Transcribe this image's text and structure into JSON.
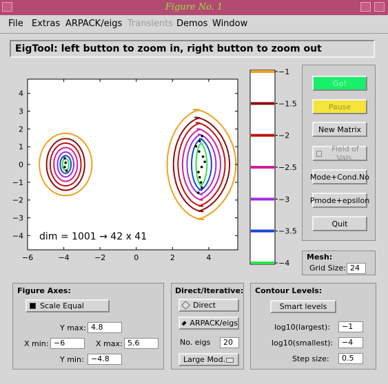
{
  "window": {
    "title": "Figure No. 1"
  },
  "menu": [
    "File",
    "Extras",
    "ARPACK/eigs",
    "Transients",
    "Demos",
    "Window"
  ],
  "status_message": "EigTool: left button to zoom in, right button to zoom out",
  "plot": {
    "annotation": "dim = 1001 → 42 x 41",
    "x_ticks": [
      "−6",
      "−4",
      "−2",
      "0",
      "2",
      "4"
    ],
    "y_ticks": [
      "4",
      "3",
      "2",
      "1",
      "0",
      "−1",
      "−2",
      "−3",
      "−4"
    ],
    "xlim": [
      -6,
      5.6
    ],
    "ylim": [
      -4.8,
      4.8
    ]
  },
  "colorbar": {
    "levels": [
      "−1",
      "−1.5",
      "−2",
      "−2.5",
      "−3",
      "−3.5",
      "−4"
    ],
    "colors": [
      "#f0a020",
      "#8b1010",
      "#c01010",
      "#d0209a",
      "#9a2ee0",
      "#1646d8",
      "#2fe24a"
    ]
  },
  "buttons": {
    "go": "Go!",
    "pause": "Pause",
    "new_matrix": "New Matrix",
    "field_of_vals": "Field of Vals.",
    "mode_cond": "Mode+Cond.No",
    "pmode": "Pmode+epsilon",
    "quit": "Quit"
  },
  "mesh": {
    "title": "Mesh:",
    "grid_label": "Grid Size:",
    "grid_value": "24"
  },
  "figure_axes": {
    "title": "Figure Axes:",
    "scale_equal": "Scale Equal",
    "ymax_label": "Y max:",
    "ymax": "4.8",
    "xmin_label": "X min:",
    "xmin": "−6",
    "xmax_label": "X max:",
    "xmax": "5.6",
    "ymin_label": "Y min:",
    "ymin": "−4.8"
  },
  "direct_iterative": {
    "title": "Direct/Iterative:",
    "direct": "Direct",
    "arpack": "ARPACK/eigs",
    "no_eigs_label": "No. eigs",
    "no_eigs": "20",
    "which": "Large Mod."
  },
  "contour_levels": {
    "title": "Contour Levels:",
    "smart": "Smart  levels",
    "largest_label": "log10(largest):",
    "largest": "−1",
    "smallest_label": "log10(smallest):",
    "smallest": "−4",
    "step_label": "Step size:",
    "step": "0.5"
  }
}
